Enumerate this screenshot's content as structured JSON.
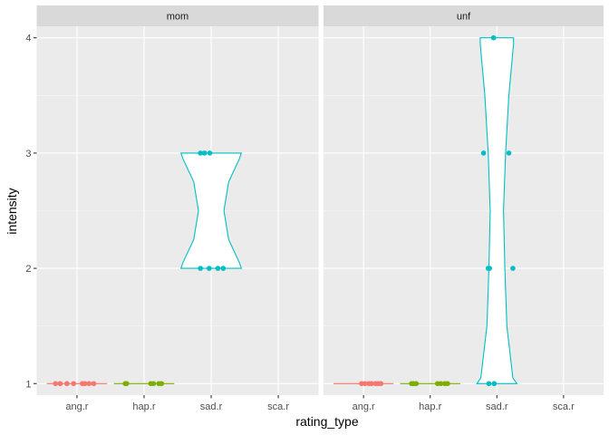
{
  "chart_data": {
    "type": "violin",
    "xlabel": "rating_type",
    "ylabel": "intensity",
    "categories": [
      "ang.r",
      "hap.r",
      "sad.r",
      "sca.r"
    ],
    "y_ticks": [
      1,
      2,
      3,
      4
    ],
    "ylim": [
      0.9,
      4.1
    ],
    "grid": true,
    "colors": {
      "ang.r": "#F8766D",
      "hap.r": "#7CAE00",
      "sad.r": "#00BFC4",
      "sca.r": "#C77CFF"
    },
    "panels": [
      {
        "name": "mom",
        "points": {
          "ang.r": [
            [
              -0.32,
              1
            ],
            [
              -0.25,
              1
            ],
            [
              -0.15,
              1
            ],
            [
              -0.05,
              1
            ],
            [
              0.08,
              1
            ],
            [
              0.12,
              1
            ],
            [
              0.18,
              1
            ],
            [
              0.25,
              1
            ]
          ],
          "hap.r": [
            [
              -0.28,
              1
            ],
            [
              -0.26,
              1
            ],
            [
              0.1,
              1
            ],
            [
              0.14,
              1
            ],
            [
              0.22,
              1
            ],
            [
              0.26,
              1
            ]
          ],
          "sad.r": [
            [
              -0.16,
              3
            ],
            [
              -0.1,
              3
            ],
            [
              -0.02,
              3
            ],
            [
              -0.16,
              2
            ],
            [
              -0.03,
              2
            ],
            [
              0.1,
              2
            ],
            [
              0.18,
              2
            ]
          ]
        },
        "violins": {
          "ang.r": {
            "ymin": 1,
            "ymax": 1
          },
          "hap.r": {
            "ymin": 1,
            "ymax": 1
          },
          "sad.r": {
            "ymin": 2,
            "ymax": 3,
            "profile": [
              [
                2,
                0.45
              ],
              [
                2.05,
                0.42
              ],
              [
                2.25,
                0.26
              ],
              [
                2.5,
                0.19
              ],
              [
                2.75,
                0.26
              ],
              [
                2.95,
                0.42
              ],
              [
                3,
                0.45
              ]
            ]
          }
        }
      },
      {
        "name": "unf",
        "points": {
          "ang.r": [
            [
              -0.03,
              1
            ],
            [
              0.02,
              1
            ],
            [
              0.08,
              1
            ],
            [
              0.12,
              1
            ],
            [
              0.18,
              1
            ],
            [
              0.22,
              1
            ],
            [
              0.26,
              1
            ]
          ],
          "hap.r": [
            [
              -0.28,
              1
            ],
            [
              -0.25,
              1
            ],
            [
              -0.21,
              1
            ],
            [
              0.11,
              1
            ],
            [
              0.16,
              1
            ],
            [
              0.22,
              1
            ],
            [
              0.26,
              1
            ]
          ],
          "sad.r": [
            [
              -0.12,
              1
            ],
            [
              -0.04,
              1
            ],
            [
              -0.2,
              3
            ],
            [
              0.18,
              3
            ],
            [
              -0.13,
              2
            ],
            [
              -0.11,
              2
            ],
            [
              0.24,
              2
            ],
            [
              -0.05,
              4
            ]
          ]
        },
        "violins": {
          "ang.r": {
            "ymin": 1,
            "ymax": 1
          },
          "hap.r": {
            "ymin": 1,
            "ymax": 1
          },
          "sad.r": {
            "ymin": 1,
            "ymax": 4,
            "profile": [
              [
                1,
                0.3
              ],
              [
                1.05,
                0.24
              ],
              [
                1.5,
                0.15
              ],
              [
                2,
                0.12
              ],
              [
                2.5,
                0.1
              ],
              [
                3,
                0.13
              ],
              [
                3.5,
                0.18
              ],
              [
                3.95,
                0.25
              ],
              [
                4,
                0.25
              ]
            ]
          }
        }
      }
    ]
  }
}
